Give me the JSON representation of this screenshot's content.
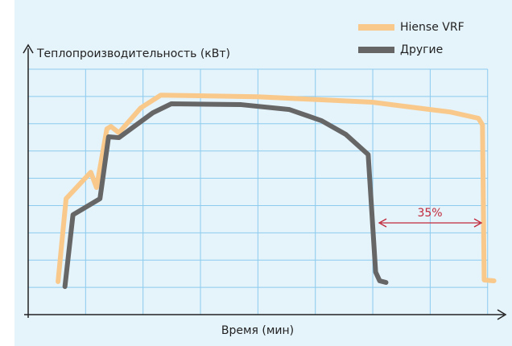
{
  "chart_data": {
    "type": "line",
    "ylabel": "Теплопроизводительность (кВт)",
    "xlabel": "Время (мин)",
    "annotation": "35%",
    "xlim": [
      0,
      8.2
    ],
    "ylim": [
      0,
      9
    ],
    "xticks": [
      0,
      1,
      2,
      3,
      4,
      5,
      6,
      7,
      8
    ],
    "yticks": [
      0,
      1,
      2,
      3,
      4,
      5,
      6,
      7,
      8,
      9
    ],
    "grid": true,
    "legend": "top-right",
    "series": [
      {
        "name": "Hiense VRF",
        "color": "#f9c98c",
        "x": [
          0.52,
          0.66,
          1.09,
          1.19,
          1.37,
          1.44,
          1.58,
          1.96,
          2.31,
          3.99,
          5.99,
          7.0,
          7.35,
          7.84,
          7.91,
          7.94,
          8.11
        ],
        "values": [
          1.21,
          4.25,
          5.22,
          4.66,
          6.81,
          6.9,
          6.67,
          7.58,
          8.05,
          7.99,
          7.79,
          7.52,
          7.43,
          7.2,
          6.96,
          1.27,
          1.24
        ]
      },
      {
        "name": "Другие",
        "color": "#666666",
        "x": [
          0.64,
          0.78,
          1.25,
          1.4,
          1.58,
          2.17,
          2.49,
          3.71,
          4.55,
          5.11,
          5.53,
          5.92,
          6.05,
          6.12,
          6.23
        ],
        "values": [
          1.03,
          3.66,
          4.25,
          6.52,
          6.49,
          7.4,
          7.73,
          7.7,
          7.52,
          7.11,
          6.61,
          5.87,
          1.56,
          1.24,
          1.18
        ]
      }
    ]
  }
}
